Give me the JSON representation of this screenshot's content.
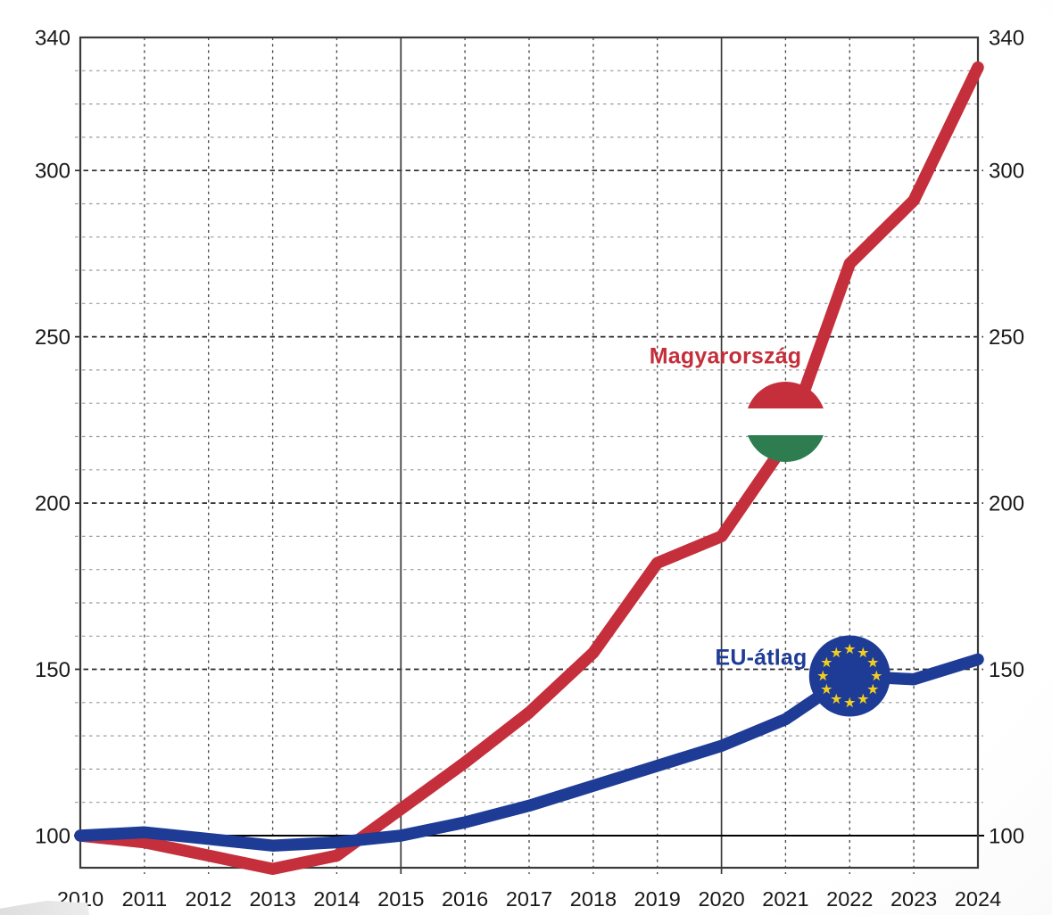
{
  "page": {
    "background_center_color": "#ffffff",
    "background_edge_color": "#ededed"
  },
  "chart_data": {
    "type": "line",
    "x": [
      2010,
      2011,
      2012,
      2013,
      2014,
      2015,
      2016,
      2017,
      2018,
      2019,
      2020,
      2021,
      2022,
      2023,
      2024
    ],
    "series": [
      {
        "name": "Magyarország",
        "color": "#c42f3b",
        "values": [
          100,
          98,
          94,
          90,
          94,
          108,
          122,
          137,
          155,
          182,
          190,
          218,
          272,
          291,
          331
        ]
      },
      {
        "name": "EU-átlag",
        "color": "#1e3c96",
        "values": [
          100,
          101,
          99,
          97,
          98,
          100,
          104,
          109,
          115,
          121,
          127,
          135,
          148,
          147,
          153
        ]
      }
    ],
    "y_axis": {
      "ticks": [
        100,
        150,
        200,
        250,
        300,
        340
      ],
      "minor_step": 10,
      "baseline": 100,
      "max": 340,
      "min_visible": 90,
      "labels_on_both_sides": true
    },
    "x_axis": {
      "solid_gridline_years": [
        2015,
        2020
      ]
    },
    "grid": {
      "horizontal": "dashed",
      "vertical": "dashed",
      "major_every": 50
    },
    "annotations": [
      {
        "text": "Magyarország",
        "color": "#c42f3b"
      },
      {
        "text": "EU-átlag",
        "color": "#1e3c96"
      }
    ],
    "markers": [
      {
        "type": "hungary-flag",
        "year": 2021,
        "stripe_colors": [
          "#c42f3b",
          "#ffffff",
          "#2e7d50"
        ]
      },
      {
        "type": "eu-flag",
        "year": 2022,
        "value": 148,
        "fill": "#1e3c96",
        "star_color": "#f1ce1e",
        "star_count": 12
      }
    ],
    "colors": {
      "grid_minor": "#9b9b9b",
      "grid_major": "#2a2a2a",
      "grid_vertical": "#4a4a4a",
      "axis_border": "#3a3a3a",
      "baseline_line": "#000000",
      "tick_text": "#191919"
    }
  }
}
